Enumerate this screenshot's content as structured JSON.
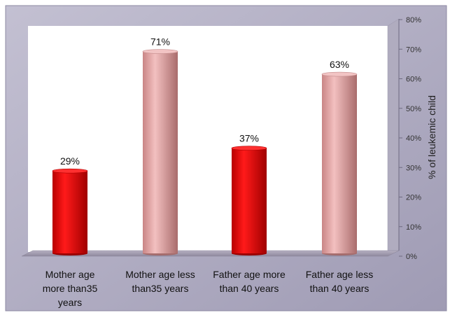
{
  "chart_data": {
    "type": "bar",
    "title": "",
    "xlabel": "",
    "ylabel": "% of leukemic child",
    "ylim": [
      0,
      80
    ],
    "ytick_step": 10,
    "ytick_suffix": "%",
    "y_axis_side": "right",
    "grid": false,
    "legend": "none",
    "categories": [
      [
        "Mother age",
        "more than35",
        "years"
      ],
      [
        "Mother age less",
        "than35 years"
      ],
      [
        "Father age more",
        "than 40 years"
      ],
      [
        "Father age less",
        "than 40 years"
      ]
    ],
    "values": [
      29,
      71,
      37,
      63
    ],
    "data_labels": [
      "29%",
      "71%",
      "37%",
      "63%"
    ],
    "colors": {
      "red_bar": "#e00000",
      "pink_bar": "#e8a6a6",
      "plot_bg": "#ffffff",
      "frame_bg": "#b9b6cb",
      "floor": "#a9a3b6"
    },
    "bar_colors": [
      "red",
      "pink",
      "red",
      "pink"
    ]
  }
}
